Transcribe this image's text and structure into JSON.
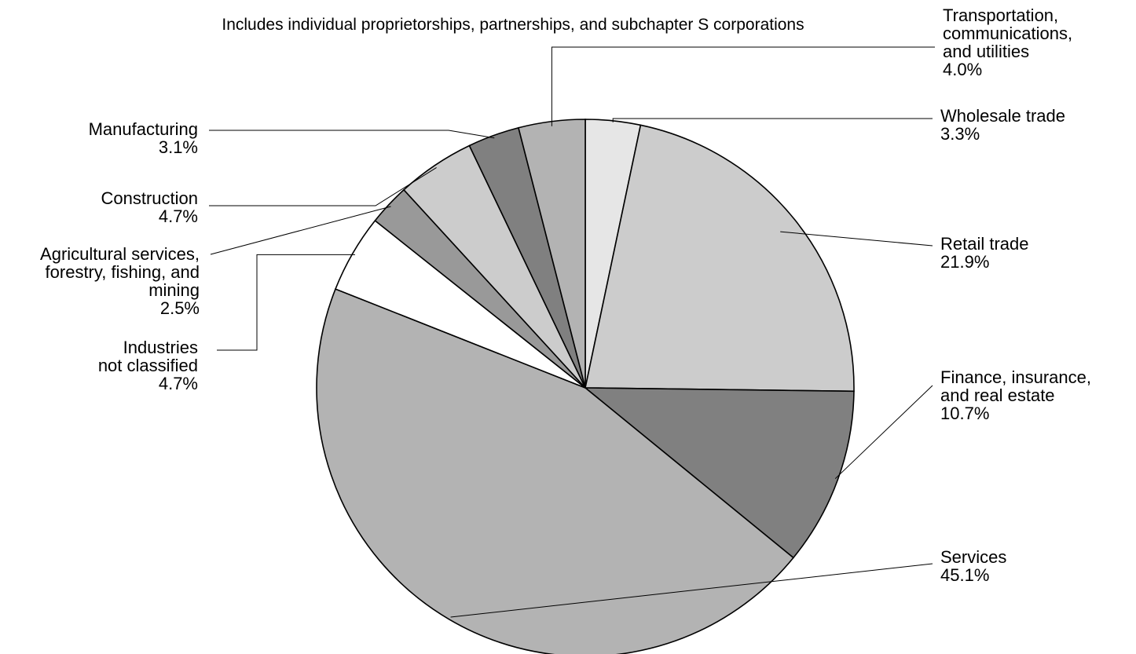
{
  "chart_data": {
    "type": "pie",
    "title": "",
    "subtitle": "Includes individual proprietorships, partnerships, and subchapter S corporations",
    "legend": "none",
    "slices": [
      {
        "label": [
          "Wholesale trade"
        ],
        "pct_text": "3.3%",
        "value": 3.3,
        "color": "#e6e6e6"
      },
      {
        "label": [
          "Retail trade"
        ],
        "pct_text": "21.9%",
        "value": 21.9,
        "color": "#cccccc"
      },
      {
        "label": [
          "Finance, insurance,",
          "and real estate"
        ],
        "pct_text": "10.7%",
        "value": 10.7,
        "color": "#808080"
      },
      {
        "label": [
          "Services"
        ],
        "pct_text": "45.1%",
        "value": 45.1,
        "color": "#b3b3b3"
      },
      {
        "label": [
          "Industries",
          "not classified"
        ],
        "pct_text": "4.7%",
        "value": 4.7,
        "color": "#ffffff"
      },
      {
        "label": [
          "Agricultural services,",
          "forestry, fishing, and",
          "mining"
        ],
        "pct_text": "2.5%",
        "value": 2.5,
        "color": "#999999"
      },
      {
        "label": [
          "Construction"
        ],
        "pct_text": "4.7%",
        "value": 4.7,
        "color": "#cccccc"
      },
      {
        "label": [
          "Manufacturing"
        ],
        "pct_text": "3.1%",
        "value": 3.1,
        "color": "#808080"
      },
      {
        "label": [
          "Transportation,",
          "communications,",
          "and utilities"
        ],
        "pct_text": "4.0%",
        "value": 4.0,
        "color": "#b3b3b3"
      }
    ]
  }
}
